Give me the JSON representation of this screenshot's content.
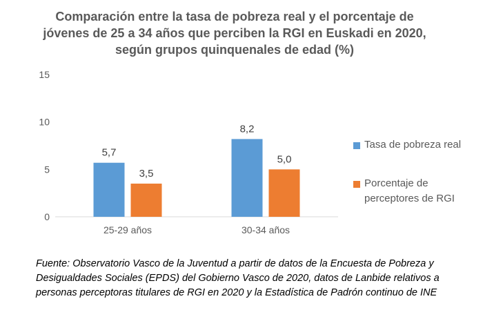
{
  "chart_data": {
    "type": "bar",
    "title": "Comparación  entre la tasa de pobreza real y el porcentaje de jóvenes de 25 a 34 años que perciben la RGI en Euskadi en 2020, según grupos quinquenales de edad (%)",
    "categories": [
      "25-29 años",
      "30-34 años"
    ],
    "series": [
      {
        "name": "Tasa de pobreza real",
        "values": [
          5.7,
          8.2
        ],
        "labels": [
          "5,7",
          "8,2"
        ],
        "color": "#5B9BD5"
      },
      {
        "name": "Porcentaje de perceptores de RGI",
        "values": [
          3.5,
          5.0
        ],
        "labels": [
          "3,5",
          "5,0"
        ],
        "color": "#ED7D31"
      }
    ],
    "ylim": [
      0,
      15
    ],
    "yticks": [
      0,
      5,
      10,
      15
    ],
    "grid": false,
    "legend": "right"
  },
  "legend": {
    "s0": "Tasa de pobreza real",
    "s1a": "Porcentaje de",
    "s1b": "perceptores de RGI"
  },
  "source": "Fuente: Observatorio Vasco de la Juventud a partir de datos de la Encuesta de Pobreza y Desigualdades Sociales (EPDS) del Gobierno Vasco de 2020, datos de Lanbide relativos a personas perceptoras titulares de RGI en 2020 y la Estadística de Padrón continuo de INE"
}
